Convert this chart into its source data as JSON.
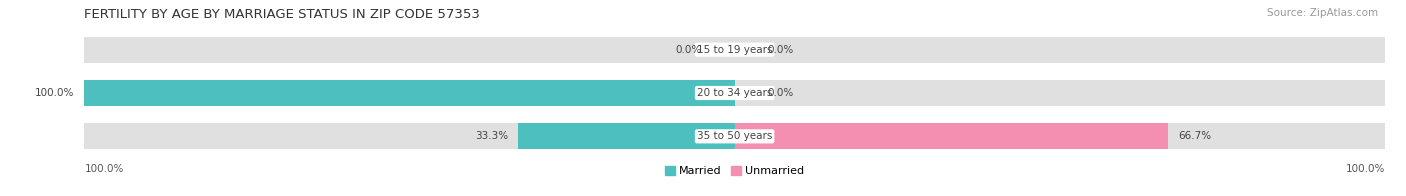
{
  "title": "FERTILITY BY AGE BY MARRIAGE STATUS IN ZIP CODE 57353",
  "source": "Source: ZipAtlas.com",
  "rows": [
    {
      "label": "15 to 19 years",
      "married": 0.0,
      "unmarried": 0.0
    },
    {
      "label": "20 to 34 years",
      "married": 100.0,
      "unmarried": 0.0
    },
    {
      "label": "35 to 50 years",
      "married": 33.3,
      "unmarried": 66.7
    }
  ],
  "married_color": "#4dbfbf",
  "unmarried_color": "#f48fb1",
  "bar_bg_color": "#e0e0e0",
  "row_bg_colors": [
    "#f0f0f0",
    "#e6e6e6",
    "#f0f0f0"
  ],
  "title_fontsize": 9.5,
  "source_fontsize": 7.5,
  "label_fontsize": 7.5,
  "value_fontsize": 7.5,
  "tick_fontsize": 7.5,
  "legend_fontsize": 8,
  "figsize": [
    14.06,
    1.96
  ],
  "dpi": 100
}
